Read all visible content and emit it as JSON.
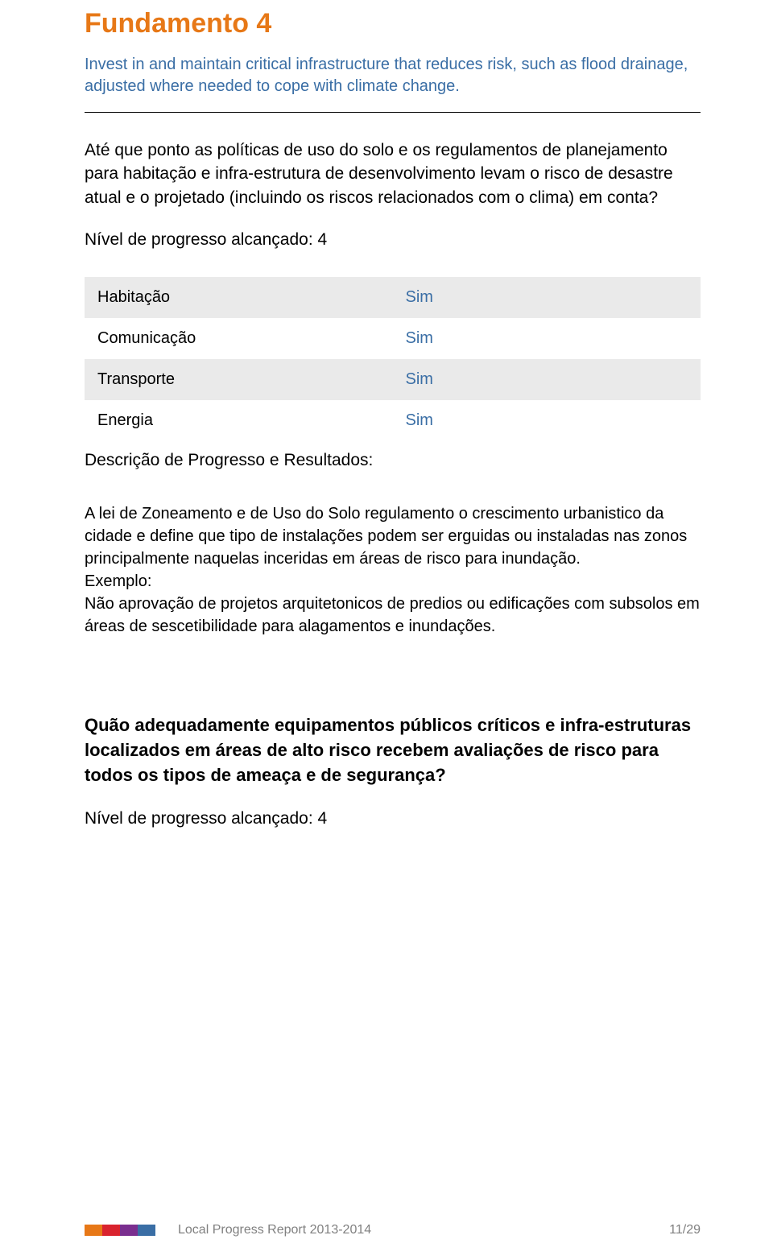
{
  "colors": {
    "accent_orange": "#e77817",
    "accent_blue": "#3a6ea5",
    "text_black": "#000000",
    "text_gray": "#808080",
    "row_shaded": "#eaeaea",
    "logo_segments": [
      "#e77817",
      "#d9232e",
      "#7a2e8f",
      "#3a6ea5"
    ]
  },
  "section": {
    "title": "Fundamento 4",
    "subtitle": "Invest in and maintain critical infrastructure that reduces risk, such as flood drainage, adjusted where needed to cope with climate change."
  },
  "q1": {
    "text": "Até que ponto as políticas de uso do solo e os regulamentos de planejamento para habitação e infra-estrutura de desenvolvimento levam o risco de desastre atual e o projetado (incluindo os riscos relacionados com o clima) em conta?",
    "progress": "Nível de progresso alcançado: 4"
  },
  "table": {
    "rows": [
      {
        "label": "Habitação",
        "value": "Sim",
        "shaded": true
      },
      {
        "label": "Comunicação",
        "value": "Sim",
        "shaded": false
      },
      {
        "label": "Transporte",
        "value": "Sim",
        "shaded": true
      },
      {
        "label": "Energia",
        "value": "Sim",
        "shaded": false
      }
    ]
  },
  "desc_heading": "Descrição de Progresso e Resultados:",
  "body1": "A lei de Zoneamento e de Uso do Solo regulamento o crescimento urbanistico da cidade e define que tipo de instalações podem ser erguidas ou instaladas nas zonos principalmente naquelas inceridas em áreas de risco para inundação.\nExemplo:\nNão aprovação de projetos arquitetonicos de predios ou edificações com subsolos em áreas de sescetibilidade para alagamentos e inundações.",
  "q2": {
    "text": "Quão adequadamente equipamentos públicos críticos e infra-estruturas localizados em áreas de alto risco recebem avaliações de risco para todos os tipos de ameaça e de segurança?",
    "progress": "Nível de progresso alcançado: 4"
  },
  "footer": {
    "report_label": "Local Progress Report 2013-2014",
    "page": "11/29"
  }
}
